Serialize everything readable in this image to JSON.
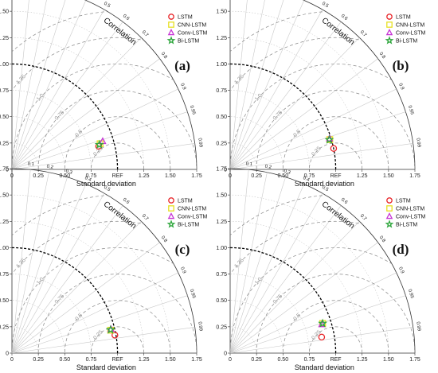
{
  "chart_data": [
    {
      "type": "scatter",
      "panel_label": "(a)",
      "xlabel": "Standard deviation",
      "corr_label": "Correlation",
      "ref_label": "REF",
      "ref_std": 1.0,
      "std_range": [
        0,
        1.75
      ],
      "std_ticks": [
        "0",
        "0.25",
        "0.50",
        "0.75",
        "",
        "1.25",
        "1.50",
        "1.75"
      ],
      "y_ticks": [
        "0",
        "0.25",
        "0.50",
        "0.75",
        "1.00",
        "1.25",
        "1.50",
        "1.75"
      ],
      "corr_ticks": [
        "0.1",
        "0.2",
        "0.3",
        "0.4",
        "0.5",
        "0.6",
        "0.7",
        "0.8",
        "0.9",
        "0.95",
        "0.99"
      ],
      "rms_labels": [
        "0.25",
        "0.5",
        "0.75",
        "1.0",
        "1.25",
        "1.5"
      ],
      "legend_placement": "top-right",
      "series": [
        {
          "name": "LSTM",
          "marker": "circle",
          "color": "#e8262a",
          "std": 0.85,
          "corr": 0.966
        },
        {
          "name": "CNN-LSTM",
          "marker": "square",
          "color": "#e7e022",
          "std": 0.87,
          "corr": 0.96
        },
        {
          "name": "Conv-LSTM",
          "marker": "triangle",
          "color": "#c736d5",
          "std": 0.9,
          "corr": 0.955
        },
        {
          "name": "Bi-LSTM",
          "marker": "star",
          "color": "#2ea63c",
          "std": 0.86,
          "corr": 0.962
        }
      ]
    },
    {
      "type": "scatter",
      "panel_label": "(b)",
      "xlabel": "Standard deviation",
      "corr_label": "Correlation",
      "ref_label": "REF",
      "ref_std": 1.0,
      "std_range": [
        0,
        1.75
      ],
      "std_ticks": [
        "0",
        "0.25",
        "0.50",
        "0.75",
        "",
        "1.25",
        "1.50",
        "1.75"
      ],
      "y_ticks": [
        "0",
        "0.25",
        "0.50",
        "0.75",
        "1.00",
        "1.25",
        "1.50",
        "1.75"
      ],
      "corr_ticks": [
        "0.1",
        "0.2",
        "0.3",
        "0.4",
        "0.5",
        "0.6",
        "0.7",
        "0.8",
        "0.9",
        "0.95",
        "0.99"
      ],
      "rms_labels": [
        "0.25",
        "0.5",
        "0.75",
        "1.0",
        "1.25",
        "1.5"
      ],
      "legend_placement": "top-right",
      "series": [
        {
          "name": "LSTM",
          "marker": "circle",
          "color": "#e8262a",
          "std": 1.0,
          "corr": 0.98
        },
        {
          "name": "CNN-LSTM",
          "marker": "square",
          "color": "#e7e022",
          "std": 0.985,
          "corr": 0.958
        },
        {
          "name": "Conv-LSTM",
          "marker": "triangle",
          "color": "#c736d5",
          "std": 0.985,
          "corr": 0.955
        },
        {
          "name": "Bi-LSTM",
          "marker": "star",
          "color": "#2ea63c",
          "std": 0.98,
          "corr": 0.958
        }
      ]
    },
    {
      "type": "scatter",
      "panel_label": "(c)",
      "xlabel": "Standard deviation",
      "corr_label": "Correlation",
      "ref_label": "REF",
      "ref_std": 1.0,
      "std_range": [
        0,
        1.75
      ],
      "std_ticks": [
        "0",
        "0.25",
        "0.50",
        "0.75",
        "",
        "1.25",
        "1.50",
        "1.75"
      ],
      "y_ticks": [
        "0",
        "0.25",
        "0.50",
        "0.75",
        "1.00",
        "1.25",
        "1.50",
        "1.75"
      ],
      "corr_ticks": [
        "0.1",
        "0.2",
        "0.3",
        "0.4",
        "0.5",
        "0.6",
        "0.7",
        "0.8",
        "0.9",
        "0.95",
        "0.99"
      ],
      "rms_labels": [
        "0.25",
        "0.5",
        "0.75",
        "1.0",
        "1.25",
        "1.5"
      ],
      "legend_placement": "top-right",
      "series": [
        {
          "name": "LSTM",
          "marker": "circle",
          "color": "#e8262a",
          "std": 0.99,
          "corr": 0.985
        },
        {
          "name": "CNN-LSTM",
          "marker": "square",
          "color": "#e7e022",
          "std": 0.96,
          "corr": 0.974
        },
        {
          "name": "Conv-LSTM",
          "marker": "triangle",
          "color": "#c736d5",
          "std": 0.965,
          "corr": 0.972
        },
        {
          "name": "Bi-LSTM",
          "marker": "star",
          "color": "#2ea63c",
          "std": 0.96,
          "corr": 0.973
        }
      ]
    },
    {
      "type": "scatter",
      "panel_label": "(d)",
      "xlabel": "Standard deviation",
      "corr_label": "Correlation",
      "ref_label": "REF",
      "ref_std": 1.0,
      "std_range": [
        0,
        1.75
      ],
      "std_ticks": [
        "0",
        "0.25",
        "0.50",
        "0.75",
        "",
        "1.25",
        "1.50",
        "1.75"
      ],
      "y_ticks": [
        "0",
        "0.25",
        "0.50",
        "0.75",
        "1.00",
        "1.25",
        "1.50",
        "1.75"
      ],
      "corr_ticks": [
        "0.1",
        "0.2",
        "0.3",
        "0.4",
        "0.5",
        "0.6",
        "0.7",
        "0.8",
        "0.9",
        "0.95",
        "0.99"
      ],
      "rms_labels": [
        "0.25",
        "0.5",
        "0.75",
        "1.0",
        "1.25",
        "1.5"
      ],
      "legend_placement": "top-right",
      "series": [
        {
          "name": "LSTM",
          "marker": "circle",
          "color": "#e8262a",
          "std": 0.88,
          "corr": 0.985
        },
        {
          "name": "CNN-LSTM",
          "marker": "square",
          "color": "#e7e022",
          "std": 0.92,
          "corr": 0.952
        },
        {
          "name": "Conv-LSTM",
          "marker": "triangle",
          "color": "#c736d5",
          "std": 0.91,
          "corr": 0.954
        },
        {
          "name": "Bi-LSTM",
          "marker": "star",
          "color": "#2ea63c",
          "std": 0.92,
          "corr": 0.952
        }
      ]
    }
  ]
}
